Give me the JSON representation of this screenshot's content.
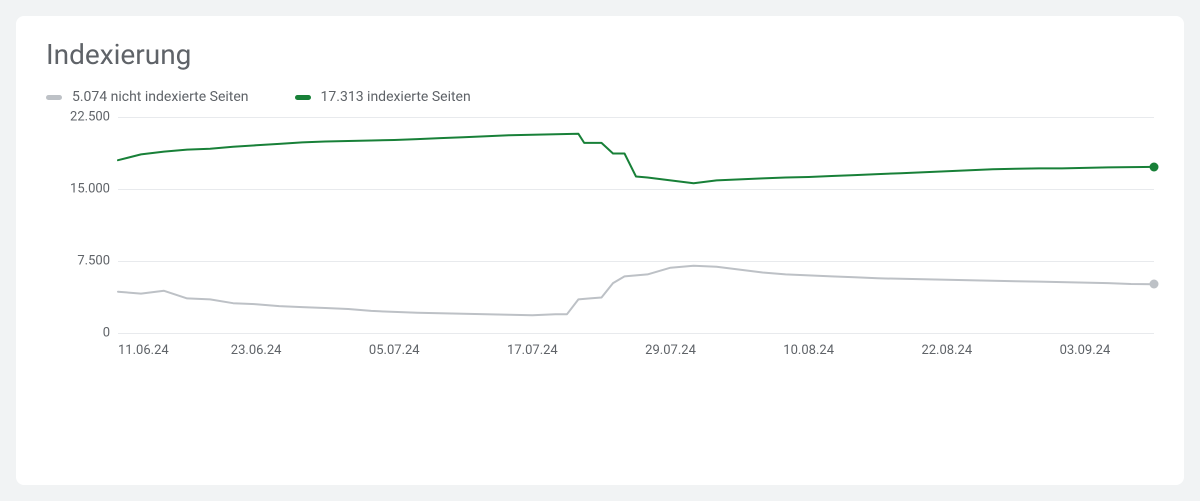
{
  "title": "Indexierung",
  "colors": {
    "background_page": "#f1f3f4",
    "card_bg": "#ffffff",
    "text_muted": "#5f6368",
    "grid": "#e8eaed",
    "series_not_indexed": "#bdc1c6",
    "series_indexed": "#188038"
  },
  "legend": {
    "not_indexed": {
      "label": "5.074 nicht indexierte Seiten",
      "color": "#bdc1c6"
    },
    "indexed": {
      "label": "17.313 indexierte Seiten",
      "color": "#188038"
    }
  },
  "chart": {
    "type": "line",
    "y": {
      "min": 0,
      "max": 22500,
      "ticks": [
        0,
        7500,
        15000,
        22500
      ],
      "tick_labels": [
        "0",
        "7.500",
        "15.000",
        "22.500"
      ],
      "label_fontsize": 13
    },
    "x": {
      "min": 0,
      "max": 90,
      "ticks": [
        0,
        12,
        24,
        36,
        48,
        60,
        72,
        84
      ],
      "tick_labels": [
        "11.06.24",
        "23.06.24",
        "05.07.24",
        "17.07.24",
        "29.07.24",
        "10.08.24",
        "22.08.24",
        "03.09.24"
      ],
      "label_fontsize": 13
    },
    "series": {
      "indexed": {
        "name": "indexierte Seiten",
        "color": "#188038",
        "line_width": 2,
        "end_marker": true,
        "data": [
          [
            0,
            18000
          ],
          [
            2,
            18600
          ],
          [
            4,
            18900
          ],
          [
            6,
            19100
          ],
          [
            8,
            19200
          ],
          [
            10,
            19400
          ],
          [
            12,
            19550
          ],
          [
            14,
            19700
          ],
          [
            16,
            19850
          ],
          [
            18,
            19950
          ],
          [
            20,
            20000
          ],
          [
            22,
            20050
          ],
          [
            24,
            20100
          ],
          [
            26,
            20200
          ],
          [
            28,
            20300
          ],
          [
            30,
            20400
          ],
          [
            32,
            20500
          ],
          [
            34,
            20600
          ],
          [
            36,
            20650
          ],
          [
            38,
            20700
          ],
          [
            40,
            20750
          ],
          [
            40.5,
            19800
          ],
          [
            41,
            19800
          ],
          [
            42,
            19800
          ],
          [
            43,
            18700
          ],
          [
            44,
            18700
          ],
          [
            45,
            16300
          ],
          [
            46,
            16200
          ],
          [
            48,
            15900
          ],
          [
            50,
            15600
          ],
          [
            52,
            15900
          ],
          [
            54,
            16000
          ],
          [
            56,
            16100
          ],
          [
            58,
            16200
          ],
          [
            60,
            16250
          ],
          [
            62,
            16350
          ],
          [
            64,
            16450
          ],
          [
            66,
            16550
          ],
          [
            68,
            16650
          ],
          [
            70,
            16750
          ],
          [
            72,
            16850
          ],
          [
            74,
            16950
          ],
          [
            76,
            17050
          ],
          [
            78,
            17100
          ],
          [
            80,
            17150
          ],
          [
            82,
            17150
          ],
          [
            84,
            17200
          ],
          [
            86,
            17250
          ],
          [
            88,
            17280
          ],
          [
            90,
            17300
          ]
        ]
      },
      "not_indexed": {
        "name": "nicht indexierte Seiten",
        "color": "#bdc1c6",
        "line_width": 2,
        "end_marker": true,
        "data": [
          [
            0,
            4300
          ],
          [
            2,
            4100
          ],
          [
            4,
            4400
          ],
          [
            6,
            3600
          ],
          [
            8,
            3500
          ],
          [
            10,
            3100
          ],
          [
            12,
            3000
          ],
          [
            14,
            2800
          ],
          [
            16,
            2700
          ],
          [
            18,
            2600
          ],
          [
            20,
            2500
          ],
          [
            22,
            2300
          ],
          [
            24,
            2200
          ],
          [
            26,
            2100
          ],
          [
            28,
            2050
          ],
          [
            30,
            2000
          ],
          [
            32,
            1950
          ],
          [
            34,
            1900
          ],
          [
            36,
            1850
          ],
          [
            38,
            1950
          ],
          [
            39,
            1950
          ],
          [
            40,
            3500
          ],
          [
            41,
            3600
          ],
          [
            42,
            3700
          ],
          [
            43,
            5200
          ],
          [
            44,
            5900
          ],
          [
            45,
            6000
          ],
          [
            46,
            6100
          ],
          [
            48,
            6800
          ],
          [
            50,
            7000
          ],
          [
            52,
            6900
          ],
          [
            54,
            6600
          ],
          [
            56,
            6300
          ],
          [
            58,
            6100
          ],
          [
            60,
            6000
          ],
          [
            62,
            5900
          ],
          [
            64,
            5800
          ],
          [
            66,
            5700
          ],
          [
            68,
            5650
          ],
          [
            70,
            5600
          ],
          [
            72,
            5550
          ],
          [
            74,
            5500
          ],
          [
            76,
            5450
          ],
          [
            78,
            5400
          ],
          [
            80,
            5350
          ],
          [
            82,
            5300
          ],
          [
            84,
            5250
          ],
          [
            86,
            5200
          ],
          [
            88,
            5100
          ],
          [
            90,
            5080
          ]
        ]
      }
    }
  }
}
